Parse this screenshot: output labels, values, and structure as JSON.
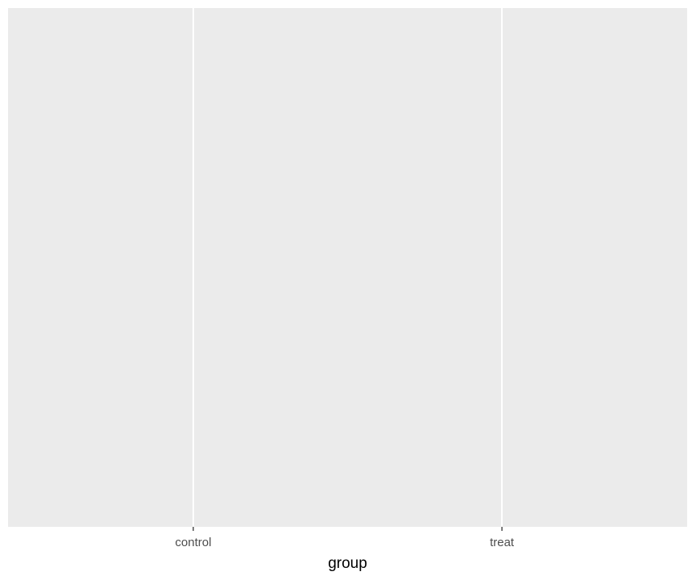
{
  "chart_data": {
    "type": "bar",
    "categories": [
      "control",
      "treat"
    ],
    "series": [],
    "title": "",
    "xlabel": "group",
    "ylabel": "",
    "grid": true,
    "legend": "none",
    "colors": {
      "panel_background": "#ebebeb",
      "grid_line": "#ffffff",
      "tick_mark": "#333333",
      "tick_label": "#4d4d4d",
      "axis_title": "#000000"
    }
  }
}
